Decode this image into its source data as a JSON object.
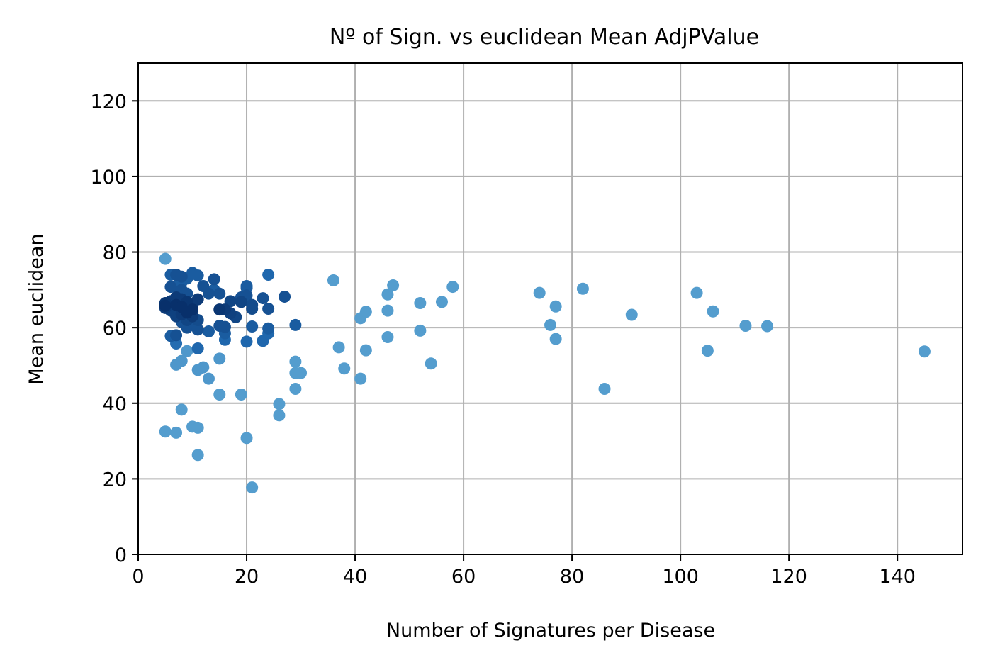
{
  "chart_data": {
    "type": "scatter",
    "title": "Nº of Sign. vs euclidean Mean AdjPValue",
    "xlabel": "Number of Signatures per Disease",
    "ylabel": "Mean euclidean",
    "xlim": [
      0,
      152
    ],
    "ylim": [
      0,
      130
    ],
    "xticks": [
      0,
      20,
      40,
      60,
      80,
      100,
      120,
      140
    ],
    "yticks": [
      0,
      20,
      40,
      60,
      80,
      100,
      120
    ],
    "grid": true,
    "colors": {
      "light": "#5aa3d2",
      "mid": "#1f67ad",
      "dark": "#08306b",
      "grid": "#b0b0b0",
      "axes": "#000000"
    },
    "points": [
      [
        5,
        78.2,
        0.05
      ],
      [
        5,
        66.5,
        0.95
      ],
      [
        5,
        65.8,
        1.0
      ],
      [
        5,
        65.2,
        0.9
      ],
      [
        5,
        32.5,
        0.05
      ],
      [
        6,
        74.0,
        0.6
      ],
      [
        6,
        70.8,
        0.7
      ],
      [
        6,
        67.0,
        0.9
      ],
      [
        6,
        64.5,
        0.85
      ],
      [
        6,
        57.8,
        0.6
      ],
      [
        7,
        74.0,
        0.7
      ],
      [
        7,
        71.0,
        0.6
      ],
      [
        7,
        68.0,
        0.9
      ],
      [
        7,
        66.0,
        1.0
      ],
      [
        7,
        63.0,
        0.85
      ],
      [
        7,
        58.0,
        0.7
      ],
      [
        7,
        55.8,
        0.45
      ],
      [
        7,
        50.2,
        0.1
      ],
      [
        7,
        32.2,
        0.05
      ],
      [
        8,
        73.5,
        0.7
      ],
      [
        8,
        72.0,
        0.6
      ],
      [
        8,
        70.0,
        0.7
      ],
      [
        8,
        67.5,
        0.9
      ],
      [
        8,
        65.5,
        1.0
      ],
      [
        8,
        63.5,
        0.9
      ],
      [
        8,
        61.5,
        0.7
      ],
      [
        8,
        51.2,
        0.1
      ],
      [
        8,
        38.3,
        0.05
      ],
      [
        9,
        73.0,
        0.6
      ],
      [
        9,
        69.0,
        0.7
      ],
      [
        9,
        66.8,
        0.95
      ],
      [
        9,
        64.0,
        1.0
      ],
      [
        9,
        62.0,
        0.8
      ],
      [
        9,
        60.0,
        0.7
      ],
      [
        9,
        53.8,
        0.1
      ],
      [
        10,
        74.5,
        0.6
      ],
      [
        10,
        66.0,
        0.9
      ],
      [
        10,
        64.8,
        1.0
      ],
      [
        10,
        63.0,
        0.9
      ],
      [
        10,
        61.0,
        0.7
      ],
      [
        10,
        33.8,
        0.05
      ],
      [
        11,
        73.8,
        0.6
      ],
      [
        11,
        67.5,
        0.9
      ],
      [
        11,
        62.0,
        0.75
      ],
      [
        11,
        59.5,
        0.7
      ],
      [
        11,
        54.5,
        0.5
      ],
      [
        11,
        48.8,
        0.1
      ],
      [
        11,
        33.5,
        0.05
      ],
      [
        11,
        26.3,
        0.05
      ],
      [
        12,
        71.0,
        0.7
      ],
      [
        12,
        49.5,
        0.1
      ],
      [
        13,
        69.0,
        0.7
      ],
      [
        13,
        59.0,
        0.6
      ],
      [
        13,
        46.5,
        0.1
      ],
      [
        14,
        72.8,
        0.7
      ],
      [
        14,
        70.0,
        0.6
      ],
      [
        15,
        69.0,
        0.7
      ],
      [
        15,
        64.8,
        0.95
      ],
      [
        15,
        60.5,
        0.7
      ],
      [
        15,
        51.8,
        0.1
      ],
      [
        15,
        42.3,
        0.05
      ],
      [
        16,
        64.8,
        0.9
      ],
      [
        16,
        60.2,
        0.7
      ],
      [
        16,
        58.5,
        0.6
      ],
      [
        16,
        56.8,
        0.5
      ],
      [
        17,
        67.0,
        0.8
      ],
      [
        17,
        63.8,
        0.85
      ],
      [
        18,
        62.8,
        0.8
      ],
      [
        19,
        68.0,
        0.7
      ],
      [
        19,
        66.8,
        0.8
      ],
      [
        19,
        42.3,
        0.05
      ],
      [
        20,
        71.0,
        0.6
      ],
      [
        20,
        70.5,
        0.6
      ],
      [
        20,
        68.5,
        0.7
      ],
      [
        20,
        56.3,
        0.5
      ],
      [
        20,
        30.8,
        0.05
      ],
      [
        21,
        66.0,
        0.75
      ],
      [
        21,
        65.0,
        0.75
      ],
      [
        21,
        60.3,
        0.6
      ],
      [
        21,
        17.7,
        0.05
      ],
      [
        23,
        67.8,
        0.7
      ],
      [
        23,
        56.5,
        0.5
      ],
      [
        24,
        74.0,
        0.5
      ],
      [
        24,
        65.0,
        0.7
      ],
      [
        24,
        59.8,
        0.6
      ],
      [
        24,
        58.5,
        0.5
      ],
      [
        26,
        39.8,
        0.05
      ],
      [
        26,
        36.8,
        0.05
      ],
      [
        27,
        68.2,
        0.7
      ],
      [
        29,
        60.7,
        0.6
      ],
      [
        29,
        51.0,
        0.05
      ],
      [
        29,
        48.0,
        0.05
      ],
      [
        29,
        43.8,
        0.05
      ],
      [
        30,
        48.0,
        0.05
      ],
      [
        36,
        72.5,
        0.05
      ],
      [
        37,
        54.8,
        0.05
      ],
      [
        38,
        49.2,
        0.05
      ],
      [
        41,
        62.5,
        0.05
      ],
      [
        41,
        46.5,
        0.05
      ],
      [
        42,
        64.2,
        0.05
      ],
      [
        42,
        54.0,
        0.05
      ],
      [
        46,
        68.8,
        0.05
      ],
      [
        46,
        64.5,
        0.05
      ],
      [
        46,
        57.5,
        0.05
      ],
      [
        47,
        71.2,
        0.05
      ],
      [
        52,
        66.5,
        0.05
      ],
      [
        52,
        59.2,
        0.05
      ],
      [
        54,
        50.5,
        0.05
      ],
      [
        56,
        66.8,
        0.05
      ],
      [
        58,
        70.8,
        0.05
      ],
      [
        74,
        69.2,
        0.05
      ],
      [
        76,
        60.7,
        0.05
      ],
      [
        77,
        65.6,
        0.05
      ],
      [
        77,
        57.0,
        0.05
      ],
      [
        82,
        70.3,
        0.05
      ],
      [
        86,
        43.8,
        0.05
      ],
      [
        91,
        63.4,
        0.05
      ],
      [
        103,
        69.2,
        0.05
      ],
      [
        105,
        53.9,
        0.05
      ],
      [
        106,
        64.3,
        0.05
      ],
      [
        112,
        60.5,
        0.05
      ],
      [
        116,
        60.4,
        0.05
      ],
      [
        145,
        53.7,
        0.05
      ]
    ]
  }
}
